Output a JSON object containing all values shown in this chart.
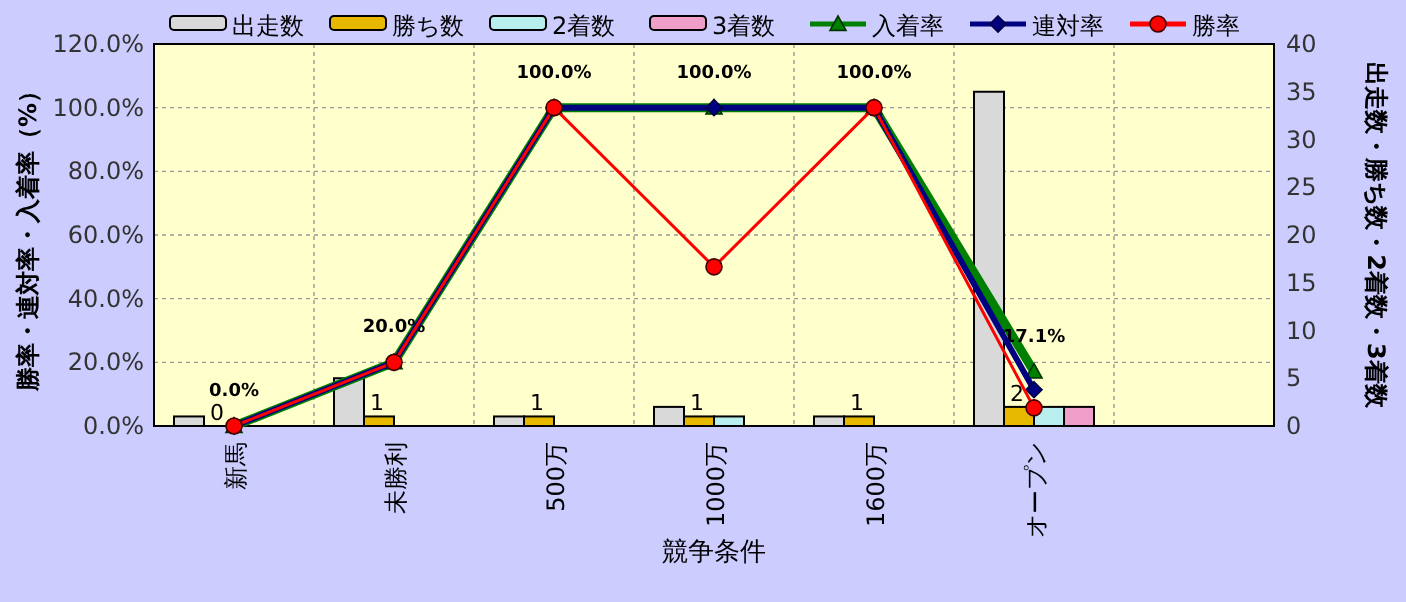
{
  "chart_data": {
    "type": "bar",
    "xlabel": "競争条件",
    "ylabel": "勝率・連対率・入着率（%）",
    "y2label": "出走数・勝ち数・2着数・3着数",
    "categories": [
      "新馬",
      "未勝利",
      "500万",
      "1000万",
      "1600万",
      "オープン",
      null
    ],
    "series": [
      {
        "name": "出走数",
        "axis": "y2",
        "color": "#d9d9d9",
        "values": [
          1,
          5,
          1,
          2,
          1,
          35,
          null
        ]
      },
      {
        "name": "勝ち数",
        "axis": "y2",
        "color": "#e6b800",
        "values": [
          0,
          1,
          1,
          1,
          1,
          2,
          null
        ],
        "value_labels": [
          "0",
          "1",
          "1",
          "1",
          "1",
          "2",
          null
        ]
      },
      {
        "name": "2着数",
        "axis": "y2",
        "color": "#b8eeee",
        "values": [
          0,
          0,
          0,
          1,
          0,
          2,
          null
        ]
      },
      {
        "name": "3着数",
        "axis": "y2",
        "color": "#f0a0c8",
        "values": [
          0,
          0,
          0,
          0,
          0,
          2,
          null
        ]
      },
      {
        "name": "入着率",
        "type": "line",
        "axis": "y",
        "color": "#008000",
        "marker": "triangle",
        "values": [
          0,
          20,
          100,
          100,
          100,
          17.1,
          null
        ],
        "value_labels": [
          "0.0%",
          "20.0%",
          "100.0%",
          "100.0%",
          "100.0%",
          "17.1%",
          null
        ]
      },
      {
        "name": "連対率",
        "type": "line",
        "axis": "y",
        "color": "#000080",
        "marker": "diamond",
        "values": [
          0,
          20,
          100,
          100,
          100,
          11.4,
          null
        ]
      },
      {
        "name": "勝率",
        "type": "line",
        "axis": "y",
        "color": "#ff0000",
        "marker": "circle",
        "values": [
          0,
          20,
          100,
          50,
          100,
          5.7,
          null
        ]
      }
    ],
    "ylim": [
      0,
      120
    ],
    "yticks": [
      {
        "value": 0,
        "label": "0.0%"
      },
      {
        "value": 20,
        "label": "20.0%"
      },
      {
        "value": 40,
        "label": "40.0%"
      },
      {
        "value": 60,
        "label": "60.0%"
      },
      {
        "value": 80,
        "label": "80.0%"
      },
      {
        "value": 100,
        "label": "100.0%"
      },
      {
        "value": 120,
        "label": "120.0%"
      }
    ],
    "y2lim": [
      0,
      40
    ],
    "y2ticks": [
      0,
      5,
      10,
      15,
      20,
      25,
      30,
      35,
      40
    ],
    "grid": true,
    "legend": "top",
    "line_style": "solid"
  }
}
